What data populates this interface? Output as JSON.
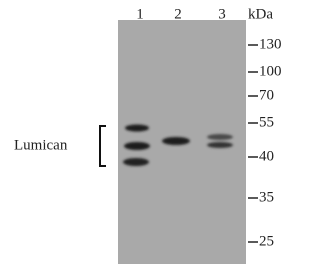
{
  "lanes": [
    "1",
    "2",
    "3"
  ],
  "unit": "kDa",
  "markers": [
    "130",
    "100",
    "70",
    "55",
    "40",
    "35",
    "25"
  ],
  "label": "Lumican"
}
